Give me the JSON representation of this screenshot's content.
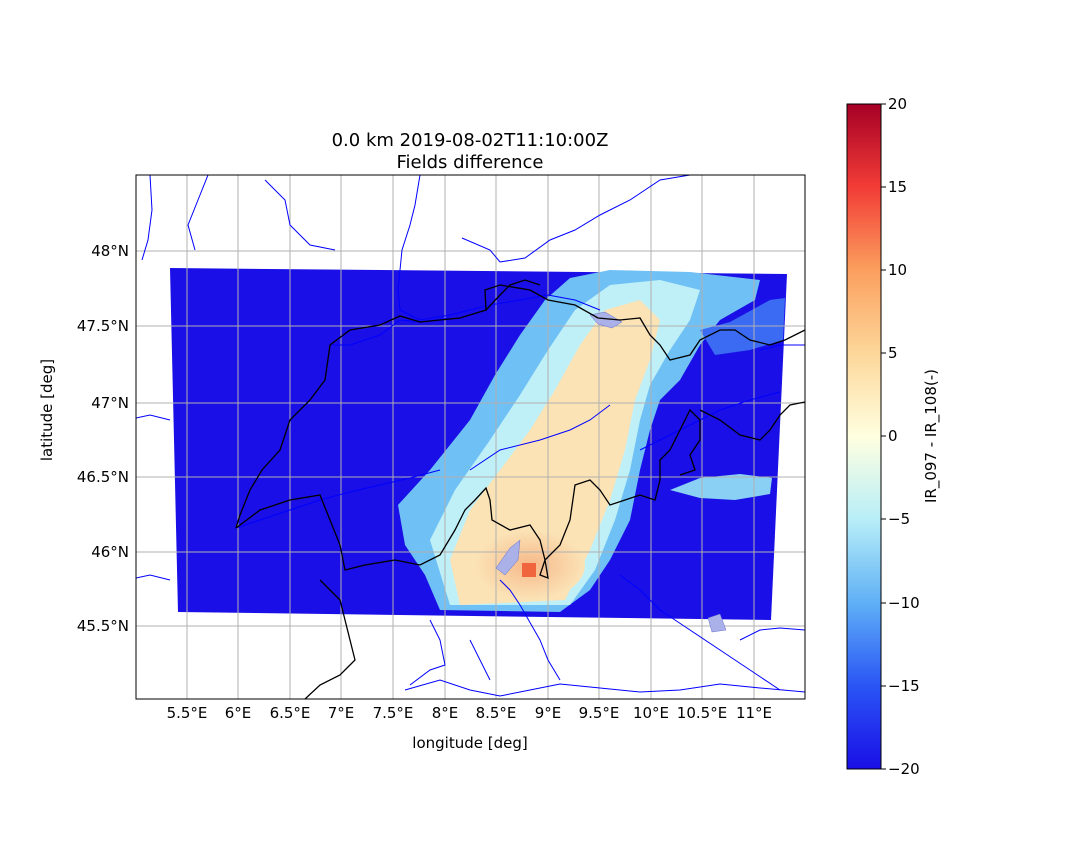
{
  "title": {
    "line1": "0.0 km 2019-08-02T11:10:00Z",
    "line2": "Fields difference"
  },
  "axes": {
    "xlabel": "longitude [deg]",
    "ylabel": "latitude [deg]",
    "x_range": [
      5.0,
      11.5
    ],
    "y_range": [
      45.0,
      48.5
    ],
    "grid": true
  },
  "x_ticks": [
    {
      "value": 5.5,
      "label": "5.5°E"
    },
    {
      "value": 6.0,
      "label": "6°E"
    },
    {
      "value": 6.5,
      "label": "6.5°E"
    },
    {
      "value": 7.0,
      "label": "7°E"
    },
    {
      "value": 7.5,
      "label": "7.5°E"
    },
    {
      "value": 8.0,
      "label": "8°E"
    },
    {
      "value": 8.5,
      "label": "8.5°E"
    },
    {
      "value": 9.0,
      "label": "9°E"
    },
    {
      "value": 9.5,
      "label": "9.5°E"
    },
    {
      "value": 10.0,
      "label": "10°E"
    },
    {
      "value": 10.5,
      "label": "10.5°E"
    },
    {
      "value": 11.0,
      "label": "11°E"
    }
  ],
  "y_ticks": [
    {
      "value": 48.0,
      "label": "48°N"
    },
    {
      "value": 47.5,
      "label": "47.5°N"
    },
    {
      "value": 47.0,
      "label": "47°N"
    },
    {
      "value": 46.5,
      "label": "46.5°N"
    },
    {
      "value": 46.0,
      "label": "46°N"
    },
    {
      "value": 45.5,
      "label": "45.5°N"
    }
  ],
  "colorbar": {
    "label": "IR_097 - IR_108(-)",
    "min": -20,
    "max": 20,
    "colormap": "jet-like (blue to red)",
    "ticks": [
      {
        "value": 20,
        "label": "20"
      },
      {
        "value": 15,
        "label": "15"
      },
      {
        "value": 10,
        "label": "10"
      },
      {
        "value": 5,
        "label": "5"
      },
      {
        "value": 0,
        "label": "0"
      },
      {
        "value": -5,
        "label": "−5"
      },
      {
        "value": -10,
        "label": "−10"
      },
      {
        "value": -15,
        "label": "−15"
      },
      {
        "value": -20,
        "label": "−20"
      }
    ]
  },
  "colors": {
    "min_blue": "#1a0fe6",
    "mid_white": "#ffffe0",
    "max_red": "#a50026",
    "river": "#0000ff",
    "border": "#000000",
    "lake": "#aab0e8",
    "grid": "#b0b0b0"
  }
}
